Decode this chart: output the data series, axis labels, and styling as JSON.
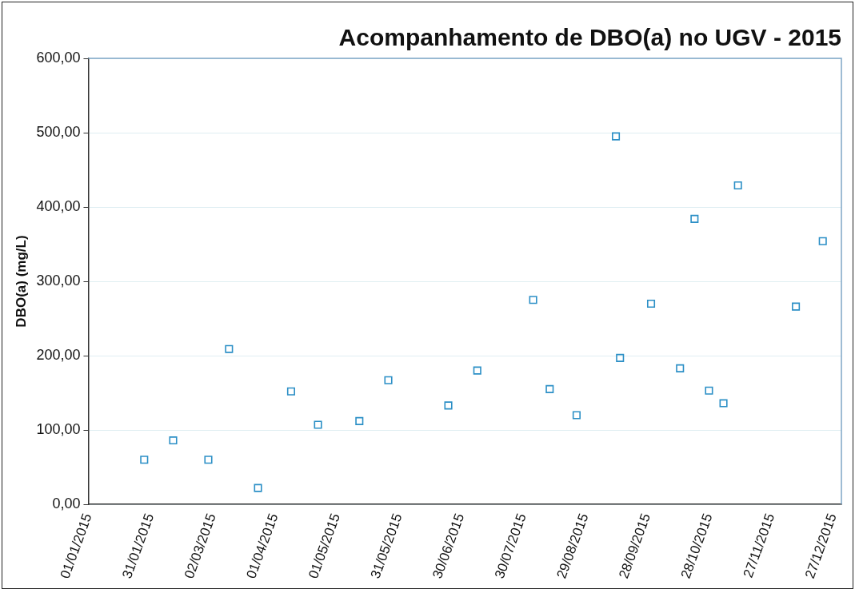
{
  "chart_data": {
    "type": "scatter",
    "title": "Acompanhamento de DBO(a) no UGV - 2015",
    "ylabel": "DBO(a) (mg/L)",
    "x": [
      "2015-01-28",
      "2015-02-11",
      "2015-02-28",
      "2015-03-10",
      "2015-03-24",
      "2015-04-09",
      "2015-04-22",
      "2015-05-12",
      "2015-05-26",
      "2015-06-24",
      "2015-07-08",
      "2015-08-04",
      "2015-08-12",
      "2015-08-25",
      "2015-09-13",
      "2015-09-15",
      "2015-09-30",
      "2015-10-14",
      "2015-10-21",
      "2015-10-28",
      "2015-11-04",
      "2015-11-11",
      "2015-12-09",
      "2015-12-22"
    ],
    "values": [
      60,
      86,
      60,
      209,
      22,
      152,
      107,
      112,
      167,
      133,
      180,
      275,
      155,
      120,
      495,
      197,
      270,
      183,
      384,
      153,
      136,
      429,
      266,
      354
    ],
    "color": "#2b8fc6",
    "marker": "square",
    "xlim": [
      "2015-01-01",
      "2015-12-31"
    ],
    "xticks": [
      {
        "value": "2015-01-01",
        "label": "01/01/2015"
      },
      {
        "value": "2015-01-31",
        "label": "31/01/2015"
      },
      {
        "value": "2015-03-02",
        "label": "02/03/2015"
      },
      {
        "value": "2015-04-01",
        "label": "01/04/2015"
      },
      {
        "value": "2015-05-01",
        "label": "01/05/2015"
      },
      {
        "value": "2015-05-31",
        "label": "31/05/2015"
      },
      {
        "value": "2015-06-30",
        "label": "30/06/2015"
      },
      {
        "value": "2015-07-30",
        "label": "30/07/2015"
      },
      {
        "value": "2015-08-29",
        "label": "29/08/2015"
      },
      {
        "value": "2015-09-28",
        "label": "28/09/2015"
      },
      {
        "value": "2015-10-28",
        "label": "28/10/2015"
      },
      {
        "value": "2015-11-27",
        "label": "27/11/2015"
      },
      {
        "value": "2015-12-27",
        "label": "27/12/2015"
      }
    ],
    "ylim": [
      0,
      600
    ],
    "yticks": [
      {
        "value": 0,
        "label": "0,00"
      },
      {
        "value": 100,
        "label": "100,00"
      },
      {
        "value": 200,
        "label": "200,00"
      },
      {
        "value": 300,
        "label": "300,00"
      },
      {
        "value": 400,
        "label": "400,00"
      },
      {
        "value": 500,
        "label": "500,00"
      },
      {
        "value": 600,
        "label": "600,00"
      }
    ],
    "grid": "y",
    "legend": false
  }
}
